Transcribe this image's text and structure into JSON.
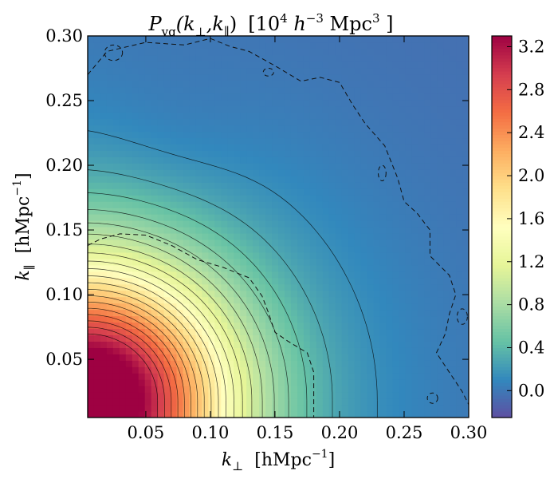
{
  "chart_data": {
    "type": "heatmap",
    "title": "P_vg(k_⊥,k_∥)  [10⁴ h⁻³ Mpc³ ]",
    "title_parts": {
      "p": "P",
      "sub": "vg",
      "args_open": "(k",
      "arg1_sub": "⊥",
      "comma_k": ",k",
      "arg2_sub": "∥",
      "args_close": ")",
      "units_open": "[10",
      "units_pow1": "4",
      "units_h": " h",
      "units_pow2": "−3",
      "units_mpc": " Mpc",
      "units_pow3": "3",
      "units_close": " ]"
    },
    "xlabel_parts": {
      "k": "k",
      "sub": "⊥",
      "unit": "[hMpc",
      "pow": "−1",
      "close": "]"
    },
    "ylabel_parts": {
      "k": "k",
      "sub": "∥",
      "unit": "[hMpc",
      "pow": "−1",
      "close": "]"
    },
    "xlim": [
      0.005,
      0.3
    ],
    "ylim": [
      0.005,
      0.3
    ],
    "x_ticks": [
      {
        "value": 0.05,
        "label": "0.05"
      },
      {
        "value": 0.1,
        "label": "0.10"
      },
      {
        "value": 0.15,
        "label": "0.15"
      },
      {
        "value": 0.2,
        "label": "0.20"
      },
      {
        "value": 0.25,
        "label": "0.25"
      },
      {
        "value": 0.3,
        "label": "0.30"
      }
    ],
    "y_ticks": [
      {
        "value": 0.05,
        "label": "0.05"
      },
      {
        "value": 0.1,
        "label": "0.10"
      },
      {
        "value": 0.15,
        "label": "0.15"
      },
      {
        "value": 0.2,
        "label": "0.20"
      },
      {
        "value": 0.25,
        "label": "0.25"
      },
      {
        "value": 0.3,
        "label": "0.30"
      }
    ],
    "colormap": "Spectral_r",
    "colorbar": {
      "range": [
        -0.25,
        3.3
      ],
      "ticks": [
        {
          "value": 0.0,
          "label": "0.0"
        },
        {
          "value": 0.4,
          "label": "0.4"
        },
        {
          "value": 0.8,
          "label": "0.8"
        },
        {
          "value": 1.2,
          "label": "1.2"
        },
        {
          "value": 1.6,
          "label": "1.6"
        },
        {
          "value": 2.0,
          "label": "2.0"
        },
        {
          "value": 2.4,
          "label": "2.4"
        },
        {
          "value": 2.8,
          "label": "2.8"
        },
        {
          "value": 3.2,
          "label": "3.2"
        }
      ],
      "stops": [
        "#5e4fa2",
        "#3288bd",
        "#66c2a5",
        "#abdda4",
        "#e6f598",
        "#ffffbf",
        "#fee08b",
        "#fdae61",
        "#f46d43",
        "#d53e4f",
        "#9e0142"
      ]
    },
    "model": {
      "peak": {
        "k_perp": 0.005,
        "k_par": 0.018,
        "value": 3.3
      },
      "background_value": -0.05,
      "solid_contour_levels": [
        0.15,
        0.3,
        0.45,
        0.6,
        0.75,
        0.9,
        1.05,
        1.2,
        1.35,
        1.5,
        1.65,
        1.8,
        1.95,
        2.1,
        2.25,
        2.4,
        2.55,
        2.7,
        2.85,
        3.0
      ],
      "dashed_contour_level": 0.0
    },
    "dashed_zero_contour": [
      [
        0.005,
        0.138
      ],
      [
        0.015,
        0.143
      ],
      [
        0.03,
        0.147
      ],
      [
        0.05,
        0.146
      ],
      [
        0.07,
        0.138
      ],
      [
        0.09,
        0.127
      ],
      [
        0.11,
        0.121
      ],
      [
        0.13,
        0.113
      ],
      [
        0.14,
        0.099
      ],
      [
        0.145,
        0.086
      ],
      [
        0.15,
        0.071
      ],
      [
        0.16,
        0.064
      ],
      [
        0.175,
        0.055
      ],
      [
        0.18,
        0.04
      ],
      [
        0.18,
        0.005
      ]
    ],
    "dashed_upper_contour": [
      [
        0.005,
        0.27
      ],
      [
        0.02,
        0.288
      ],
      [
        0.05,
        0.295
      ],
      [
        0.08,
        0.293
      ],
      [
        0.1,
        0.298
      ],
      [
        0.115,
        0.292
      ],
      [
        0.13,
        0.288
      ],
      [
        0.15,
        0.277
      ],
      [
        0.17,
        0.265
      ],
      [
        0.185,
        0.268
      ],
      [
        0.2,
        0.264
      ],
      [
        0.21,
        0.247
      ],
      [
        0.22,
        0.232
      ],
      [
        0.235,
        0.215
      ],
      [
        0.245,
        0.19
      ],
      [
        0.25,
        0.172
      ],
      [
        0.26,
        0.163
      ],
      [
        0.27,
        0.15
      ],
      [
        0.27,
        0.13
      ],
      [
        0.285,
        0.115
      ],
      [
        0.29,
        0.1
      ],
      [
        0.285,
        0.085
      ],
      [
        0.282,
        0.07
      ],
      [
        0.275,
        0.055
      ],
      [
        0.285,
        0.04
      ],
      [
        0.295,
        0.025
      ],
      [
        0.3,
        0.015
      ]
    ],
    "dashed_islands": [
      {
        "center": [
          0.025,
          0.287
        ],
        "radius": [
          0.007,
          0.006
        ]
      },
      {
        "center": [
          0.145,
          0.272
        ],
        "radius": [
          0.004,
          0.003
        ]
      },
      {
        "center": [
          0.233,
          0.194
        ],
        "radius": [
          0.003,
          0.006
        ]
      },
      {
        "center": [
          0.295,
          0.083
        ],
        "radius": [
          0.004,
          0.006
        ]
      },
      {
        "center": [
          0.272,
          0.02
        ],
        "radius": [
          0.004,
          0.004
        ]
      }
    ]
  }
}
